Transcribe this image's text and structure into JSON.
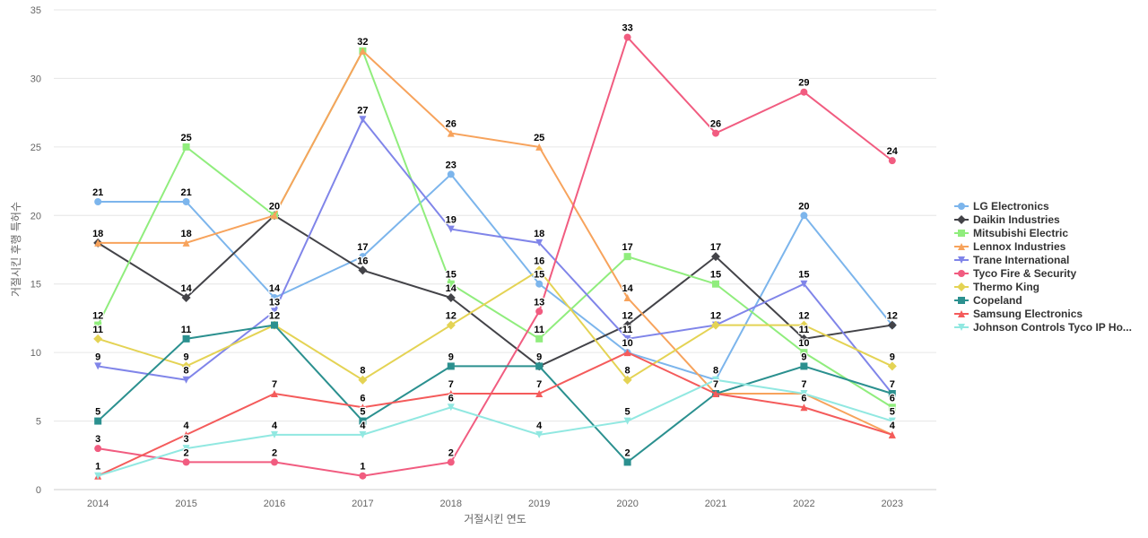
{
  "chart_data": {
    "type": "line",
    "xlabel": "거절시킨 연도",
    "ylabel": "거절시킨 후행 특허수",
    "categories": [
      "2014",
      "2015",
      "2016",
      "2017",
      "2018",
      "2019",
      "2020",
      "2021",
      "2022",
      "2023"
    ],
    "ylim": [
      0,
      35
    ],
    "yticks": [
      0,
      5,
      10,
      15,
      20,
      25,
      30,
      35
    ],
    "grid": true,
    "legend_position": "right",
    "series": [
      {
        "name": "LG Electronics",
        "color": "#7cb5ec",
        "marker": "circle",
        "values": [
          21,
          21,
          14,
          17,
          23,
          15,
          10,
          8,
          20,
          12
        ]
      },
      {
        "name": "Daikin Industries",
        "color": "#434348",
        "marker": "diamond",
        "values": [
          18,
          14,
          20,
          16,
          14,
          9,
          12,
          17,
          11,
          12
        ]
      },
      {
        "name": "Mitsubishi Electric",
        "color": "#90ed7d",
        "marker": "square",
        "values": [
          12,
          25,
          20,
          32,
          15,
          11,
          17,
          15,
          10,
          6
        ]
      },
      {
        "name": "Lennox Industries",
        "color": "#f7a35c",
        "marker": "triangle",
        "values": [
          18,
          18,
          20,
          32,
          26,
          25,
          14,
          7,
          7,
          4
        ]
      },
      {
        "name": "Trane International",
        "color": "#8085e9",
        "marker": "triangle-down",
        "values": [
          9,
          8,
          13,
          27,
          19,
          18,
          11,
          12,
          15,
          7
        ]
      },
      {
        "name": "Tyco Fire & Security",
        "color": "#f15c80",
        "marker": "circle",
        "values": [
          3,
          2,
          2,
          1,
          2,
          13,
          33,
          26,
          29,
          24
        ]
      },
      {
        "name": "Thermo King",
        "color": "#e4d354",
        "marker": "diamond",
        "values": [
          11,
          9,
          12,
          8,
          12,
          16,
          8,
          12,
          12,
          9
        ]
      },
      {
        "name": "Copeland",
        "color": "#2b908f",
        "marker": "square",
        "values": [
          5,
          11,
          12,
          5,
          9,
          9,
          2,
          7,
          9,
          7
        ]
      },
      {
        "name": "Samsung Electronics",
        "color": "#f45b5b",
        "marker": "triangle",
        "values": [
          1,
          4,
          7,
          6,
          7,
          7,
          10,
          7,
          6,
          4
        ]
      },
      {
        "name": "Johnson Controls Tyco IP Ho...",
        "color": "#91e8e1",
        "marker": "triangle-down",
        "values": [
          1,
          3,
          4,
          4,
          6,
          4,
          5,
          8,
          7,
          5
        ]
      }
    ]
  }
}
